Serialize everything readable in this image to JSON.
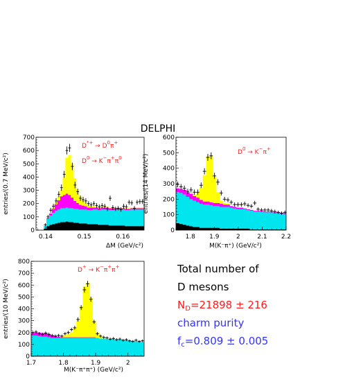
{
  "header": {
    "title": "DELPHI"
  },
  "summary": {
    "line1": "Total number of",
    "line2": "D mesons",
    "nd": "N",
    "nd_sub": "D",
    "nd_value": "=21898 ± 216",
    "purity_label": "charm purity",
    "fc": "f",
    "fc_sub": "c",
    "fc_value": "=0.809 ± 0.005"
  },
  "colors": {
    "black_component": "#000000",
    "cyan_component": "#00e5ee",
    "magenta_component": "#ff00ff",
    "yellow_component": "#ffff00",
    "data_points": "#000000",
    "annotation": "#ff1a1a",
    "purity_text": "#3333ff"
  },
  "chart_data": [
    {
      "type": "bar",
      "stacked": true,
      "title": "",
      "xlabel": "ΔM (GeV/c²)",
      "ylabel": "entries/(0.7 MeV/c²)",
      "xlim": [
        0.1375,
        0.1655
      ],
      "ylim": [
        0,
        700
      ],
      "xticks": [
        0.14,
        0.15,
        0.16
      ],
      "xtick_labels": [
        "0.14",
        "0.15",
        "0.16"
      ],
      "yticks": [
        0,
        100,
        200,
        300,
        400,
        500,
        600,
        700
      ],
      "ytick_labels": [
        "0",
        "100",
        "200",
        "300",
        "400",
        "500",
        "600",
        "700"
      ],
      "annotations": [
        {
          "parts": [
            "D",
            "*+",
            " → D",
            "0",
            "π",
            "+"
          ],
          "sup": [
            1,
            3,
            5
          ]
        },
        {
          "parts": [
            "D",
            "0",
            " → K",
            "−",
            "π",
            "+",
            "π",
            "0"
          ],
          "sup": [
            1,
            3,
            5,
            7
          ]
        }
      ],
      "bin_edges_x": [
        0.1395,
        0.1402,
        0.1409,
        0.1416,
        0.1423,
        0.143,
        0.1437,
        0.1444,
        0.1451,
        0.1458,
        0.1465,
        0.1472,
        0.1479,
        0.1486,
        0.1493,
        0.15,
        0.1507,
        0.1514,
        0.1521,
        0.1528,
        0.1535,
        0.1542,
        0.1549,
        0.1556,
        0.1563,
        0.157,
        0.1577,
        0.1584,
        0.1591,
        0.1598,
        0.1605,
        0.1612,
        0.1619,
        0.1626,
        0.1633,
        0.164,
        0.1647,
        0.1654
      ],
      "series": [
        {
          "name": "",
          "color": "#000000",
          "values": [
            10,
            30,
            40,
            45,
            50,
            55,
            60,
            60,
            65,
            60,
            60,
            55,
            55,
            50,
            50,
            50,
            45,
            45,
            45,
            45,
            40,
            40,
            40,
            40,
            35,
            35,
            35,
            35,
            35,
            35,
            30,
            30,
            30,
            30,
            30,
            30,
            30
          ]
        },
        {
          "name": "",
          "color": "#00e5ee",
          "values": [
            20,
            55,
            70,
            85,
            95,
            100,
            105,
            105,
            105,
            105,
            105,
            105,
            105,
            105,
            105,
            105,
            105,
            105,
            110,
            110,
            110,
            115,
            115,
            115,
            115,
            115,
            120,
            120,
            120,
            120,
            120,
            120,
            125,
            125,
            125,
            125,
            125
          ]
        },
        {
          "name": "",
          "color": "#ff00ff",
          "values": [
            0,
            5,
            15,
            30,
            50,
            70,
            90,
            100,
            105,
            100,
            80,
            60,
            45,
            35,
            30,
            25,
            20,
            20,
            15,
            15,
            15,
            15,
            15,
            15,
            15,
            15,
            10,
            10,
            10,
            10,
            10,
            10,
            10,
            10,
            10,
            10,
            10
          ]
        },
        {
          "name": "",
          "color": "#ffff00",
          "values": [
            0,
            0,
            5,
            10,
            15,
            25,
            50,
            130,
            270,
            300,
            255,
            170,
            100,
            60,
            40,
            25,
            15,
            10,
            10,
            5,
            5,
            5,
            5,
            5,
            5,
            5,
            5,
            5,
            5,
            5,
            5,
            5,
            5,
            5,
            5,
            5,
            5
          ]
        }
      ],
      "points": {
        "x": [
          0.1399,
          0.1406,
          0.1413,
          0.142,
          0.1427,
          0.1434,
          0.1441,
          0.1448,
          0.1455,
          0.1462,
          0.1469,
          0.1476,
          0.1483,
          0.149,
          0.1497,
          0.1504,
          0.1511,
          0.1518,
          0.1525,
          0.1532,
          0.1539,
          0.1546,
          0.1553,
          0.156,
          0.1567,
          0.1574,
          0.1581,
          0.1588,
          0.1595,
          0.1602,
          0.1609,
          0.1616,
          0.1623,
          0.163,
          0.1637,
          0.1644,
          0.1651
        ],
        "y": [
          40,
          100,
          150,
          180,
          220,
          270,
          320,
          420,
          600,
          620,
          480,
          340,
          290,
          240,
          230,
          220,
          200,
          190,
          200,
          185,
          175,
          185,
          180,
          160,
          240,
          170,
          160,
          165,
          155,
          180,
          175,
          210,
          205,
          165,
          210,
          215,
          215
        ],
        "yerr": [
          12,
          14,
          18,
          18,
          20,
          22,
          24,
          26,
          30,
          30,
          28,
          24,
          22,
          20,
          20,
          20,
          18,
          18,
          18,
          18,
          18,
          18,
          18,
          16,
          20,
          18,
          16,
          16,
          16,
          18,
          18,
          18,
          18,
          16,
          18,
          18,
          18
        ]
      }
    },
    {
      "type": "bar",
      "stacked": true,
      "title": "",
      "xlabel": "M(K⁻π⁺) (GeV/c²)",
      "ylabel": "entries/(14 MeV/c²)",
      "xlim": [
        1.74,
        2.2
      ],
      "ylim": [
        0,
        600
      ],
      "xticks": [
        1.8,
        1.9,
        2.0,
        2.1,
        2.2
      ],
      "xtick_labels": [
        "1.8",
        "1.9",
        "2",
        "2.1",
        "2.2"
      ],
      "yticks": [
        0,
        100,
        200,
        300,
        400,
        500,
        600
      ],
      "ytick_labels": [
        "0",
        "100",
        "200",
        "300",
        "400",
        "500",
        "600"
      ],
      "annotations": [
        {
          "parts": [
            "D",
            "0",
            " → K",
            "−",
            "π",
            "+"
          ],
          "sup": [
            1,
            3,
            5
          ]
        }
      ],
      "bin_edges_x": [
        1.74,
        1.754,
        1.768,
        1.782,
        1.796,
        1.81,
        1.824,
        1.838,
        1.852,
        1.866,
        1.88,
        1.894,
        1.908,
        1.922,
        1.936,
        1.95,
        1.964,
        1.978,
        1.992,
        2.006,
        2.02,
        2.034,
        2.048,
        2.062,
        2.076,
        2.09,
        2.104,
        2.118,
        2.132,
        2.146,
        2.16,
        2.174,
        2.188,
        2.2
      ],
      "series": [
        {
          "name": "",
          "color": "#000000",
          "values": [
            45,
            40,
            35,
            30,
            25,
            20,
            20,
            15,
            15,
            15,
            15,
            15,
            15,
            10,
            10,
            10,
            10,
            10,
            10,
            10,
            10,
            10,
            5,
            5,
            5,
            5,
            5,
            5,
            5,
            5,
            5,
            5,
            5
          ]
        },
        {
          "name": "",
          "color": "#00e5ee",
          "values": [
            200,
            200,
            195,
            185,
            175,
            170,
            160,
            155,
            150,
            150,
            145,
            140,
            140,
            140,
            140,
            140,
            135,
            130,
            125,
            125,
            125,
            120,
            120,
            115,
            115,
            115,
            110,
            110,
            110,
            105,
            105,
            100,
            100
          ]
        },
        {
          "name": "",
          "color": "#ff00ff",
          "values": [
            25,
            25,
            30,
            30,
            35,
            30,
            30,
            25,
            20,
            20,
            20,
            20,
            20,
            20,
            15,
            15,
            10,
            10,
            10,
            10,
            5,
            5,
            5,
            5,
            5,
            5,
            5,
            5,
            5,
            5,
            5,
            5,
            5
          ]
        },
        {
          "name": "",
          "color": "#ffff00",
          "values": [
            0,
            0,
            0,
            0,
            0,
            10,
            30,
            80,
            170,
            290,
            300,
            170,
            70,
            20,
            10,
            5,
            0,
            0,
            0,
            0,
            0,
            0,
            0,
            0,
            0,
            0,
            0,
            0,
            0,
            0,
            0,
            0,
            0
          ]
        }
      ],
      "points": {
        "x": [
          1.747,
          1.761,
          1.775,
          1.789,
          1.803,
          1.817,
          1.831,
          1.845,
          1.859,
          1.873,
          1.887,
          1.901,
          1.915,
          1.929,
          1.943,
          1.957,
          1.971,
          1.985,
          1.999,
          2.013,
          2.027,
          2.041,
          2.055,
          2.069,
          2.083,
          2.097,
          2.111,
          2.125,
          2.139,
          2.153,
          2.167,
          2.181,
          2.195
        ],
        "y": [
          295,
          280,
          270,
          250,
          260,
          245,
          245,
          290,
          380,
          470,
          480,
          350,
          310,
          240,
          200,
          195,
          180,
          165,
          165,
          165,
          170,
          160,
          155,
          175,
          135,
          130,
          130,
          130,
          125,
          120,
          115,
          110,
          115
        ],
        "yerr": [
          18,
          18,
          18,
          17,
          17,
          17,
          17,
          18,
          20,
          22,
          22,
          20,
          18,
          16,
          15,
          15,
          14,
          14,
          14,
          14,
          14,
          13,
          13,
          14,
          12,
          12,
          12,
          12,
          12,
          12,
          11,
          11,
          11
        ]
      }
    },
    {
      "type": "bar",
      "stacked": true,
      "title": "",
      "xlabel": "M(K⁻π⁺π⁺) (GeV/c²)",
      "ylabel": "entries/(10 MeV/c²)",
      "xlim": [
        1.7,
        2.05
      ],
      "ylim": [
        0,
        800
      ],
      "xticks": [
        1.7,
        1.8,
        1.9,
        2.0
      ],
      "xtick_labels": [
        "1.7",
        "1.8",
        "1.9",
        "2"
      ],
      "yticks": [
        0,
        100,
        200,
        300,
        400,
        500,
        600,
        700,
        800
      ],
      "ytick_labels": [
        "0",
        "100",
        "200",
        "300",
        "400",
        "500",
        "600",
        "700",
        "800"
      ],
      "annotations": [
        {
          "parts": [
            "D",
            "+",
            " → K",
            "−",
            "π",
            "+",
            "π",
            "+"
          ],
          "sup": [
            1,
            3,
            5,
            7
          ]
        }
      ],
      "bin_edges_x": [
        1.7,
        1.71,
        1.72,
        1.73,
        1.74,
        1.75,
        1.76,
        1.77,
        1.78,
        1.79,
        1.8,
        1.81,
        1.82,
        1.83,
        1.84,
        1.85,
        1.86,
        1.87,
        1.88,
        1.89,
        1.9,
        1.91,
        1.92,
        1.93,
        1.94,
        1.95,
        1.96,
        1.97,
        1.98,
        1.99,
        2.0,
        2.01,
        2.02,
        2.03,
        2.04,
        2.05
      ],
      "series": [
        {
          "name": "",
          "color": "#000000",
          "values": [
            5,
            5,
            5,
            5,
            5,
            5,
            5,
            5,
            5,
            5,
            5,
            5,
            5,
            5,
            5,
            5,
            5,
            5,
            5,
            5,
            5,
            5,
            5,
            5,
            5,
            5,
            5,
            5,
            5,
            5,
            5,
            5,
            5,
            5,
            5
          ]
        },
        {
          "name": "",
          "color": "#00e5ee",
          "values": [
            170,
            170,
            165,
            160,
            160,
            155,
            150,
            150,
            150,
            150,
            150,
            150,
            150,
            150,
            150,
            150,
            150,
            150,
            150,
            150,
            150,
            145,
            145,
            140,
            140,
            140,
            135,
            135,
            130,
            130,
            125,
            125,
            120,
            120,
            115
          ]
        },
        {
          "name": "",
          "color": "#ff00ff",
          "values": [
            20,
            25,
            30,
            30,
            30,
            25,
            20,
            15,
            10,
            5,
            5,
            5,
            5,
            5,
            5,
            5,
            5,
            5,
            5,
            5,
            0,
            0,
            0,
            0,
            0,
            0,
            0,
            0,
            0,
            0,
            0,
            0,
            0,
            0,
            0
          ]
        },
        {
          "name": "",
          "color": "#ffff00",
          "values": [
            0,
            0,
            0,
            0,
            0,
            0,
            0,
            0,
            5,
            10,
            15,
            25,
            45,
            75,
            140,
            260,
            430,
            460,
            330,
            140,
            50,
            15,
            5,
            0,
            0,
            0,
            0,
            0,
            0,
            0,
            0,
            0,
            0,
            0,
            0
          ]
        }
      ],
      "points": {
        "x": [
          1.705,
          1.715,
          1.725,
          1.735,
          1.745,
          1.755,
          1.765,
          1.775,
          1.785,
          1.795,
          1.805,
          1.815,
          1.825,
          1.835,
          1.845,
          1.855,
          1.865,
          1.875,
          1.885,
          1.895,
          1.905,
          1.915,
          1.925,
          1.935,
          1.945,
          1.955,
          1.965,
          1.975,
          1.985,
          1.995,
          2.005,
          2.015,
          2.025,
          2.035,
          2.045
        ],
        "y": [
          200,
          205,
          190,
          185,
          195,
          185,
          175,
          170,
          175,
          170,
          190,
          200,
          225,
          240,
          310,
          410,
          560,
          610,
          480,
          290,
          190,
          170,
          160,
          155,
          145,
          150,
          140,
          145,
          135,
          140,
          130,
          125,
          135,
          125,
          130
        ],
        "yerr": [
          14,
          14,
          14,
          14,
          14,
          14,
          13,
          13,
          13,
          13,
          14,
          14,
          15,
          16,
          18,
          20,
          24,
          25,
          22,
          17,
          14,
          13,
          13,
          12,
          12,
          12,
          12,
          12,
          12,
          12,
          11,
          11,
          12,
          11,
          11
        ]
      }
    }
  ]
}
